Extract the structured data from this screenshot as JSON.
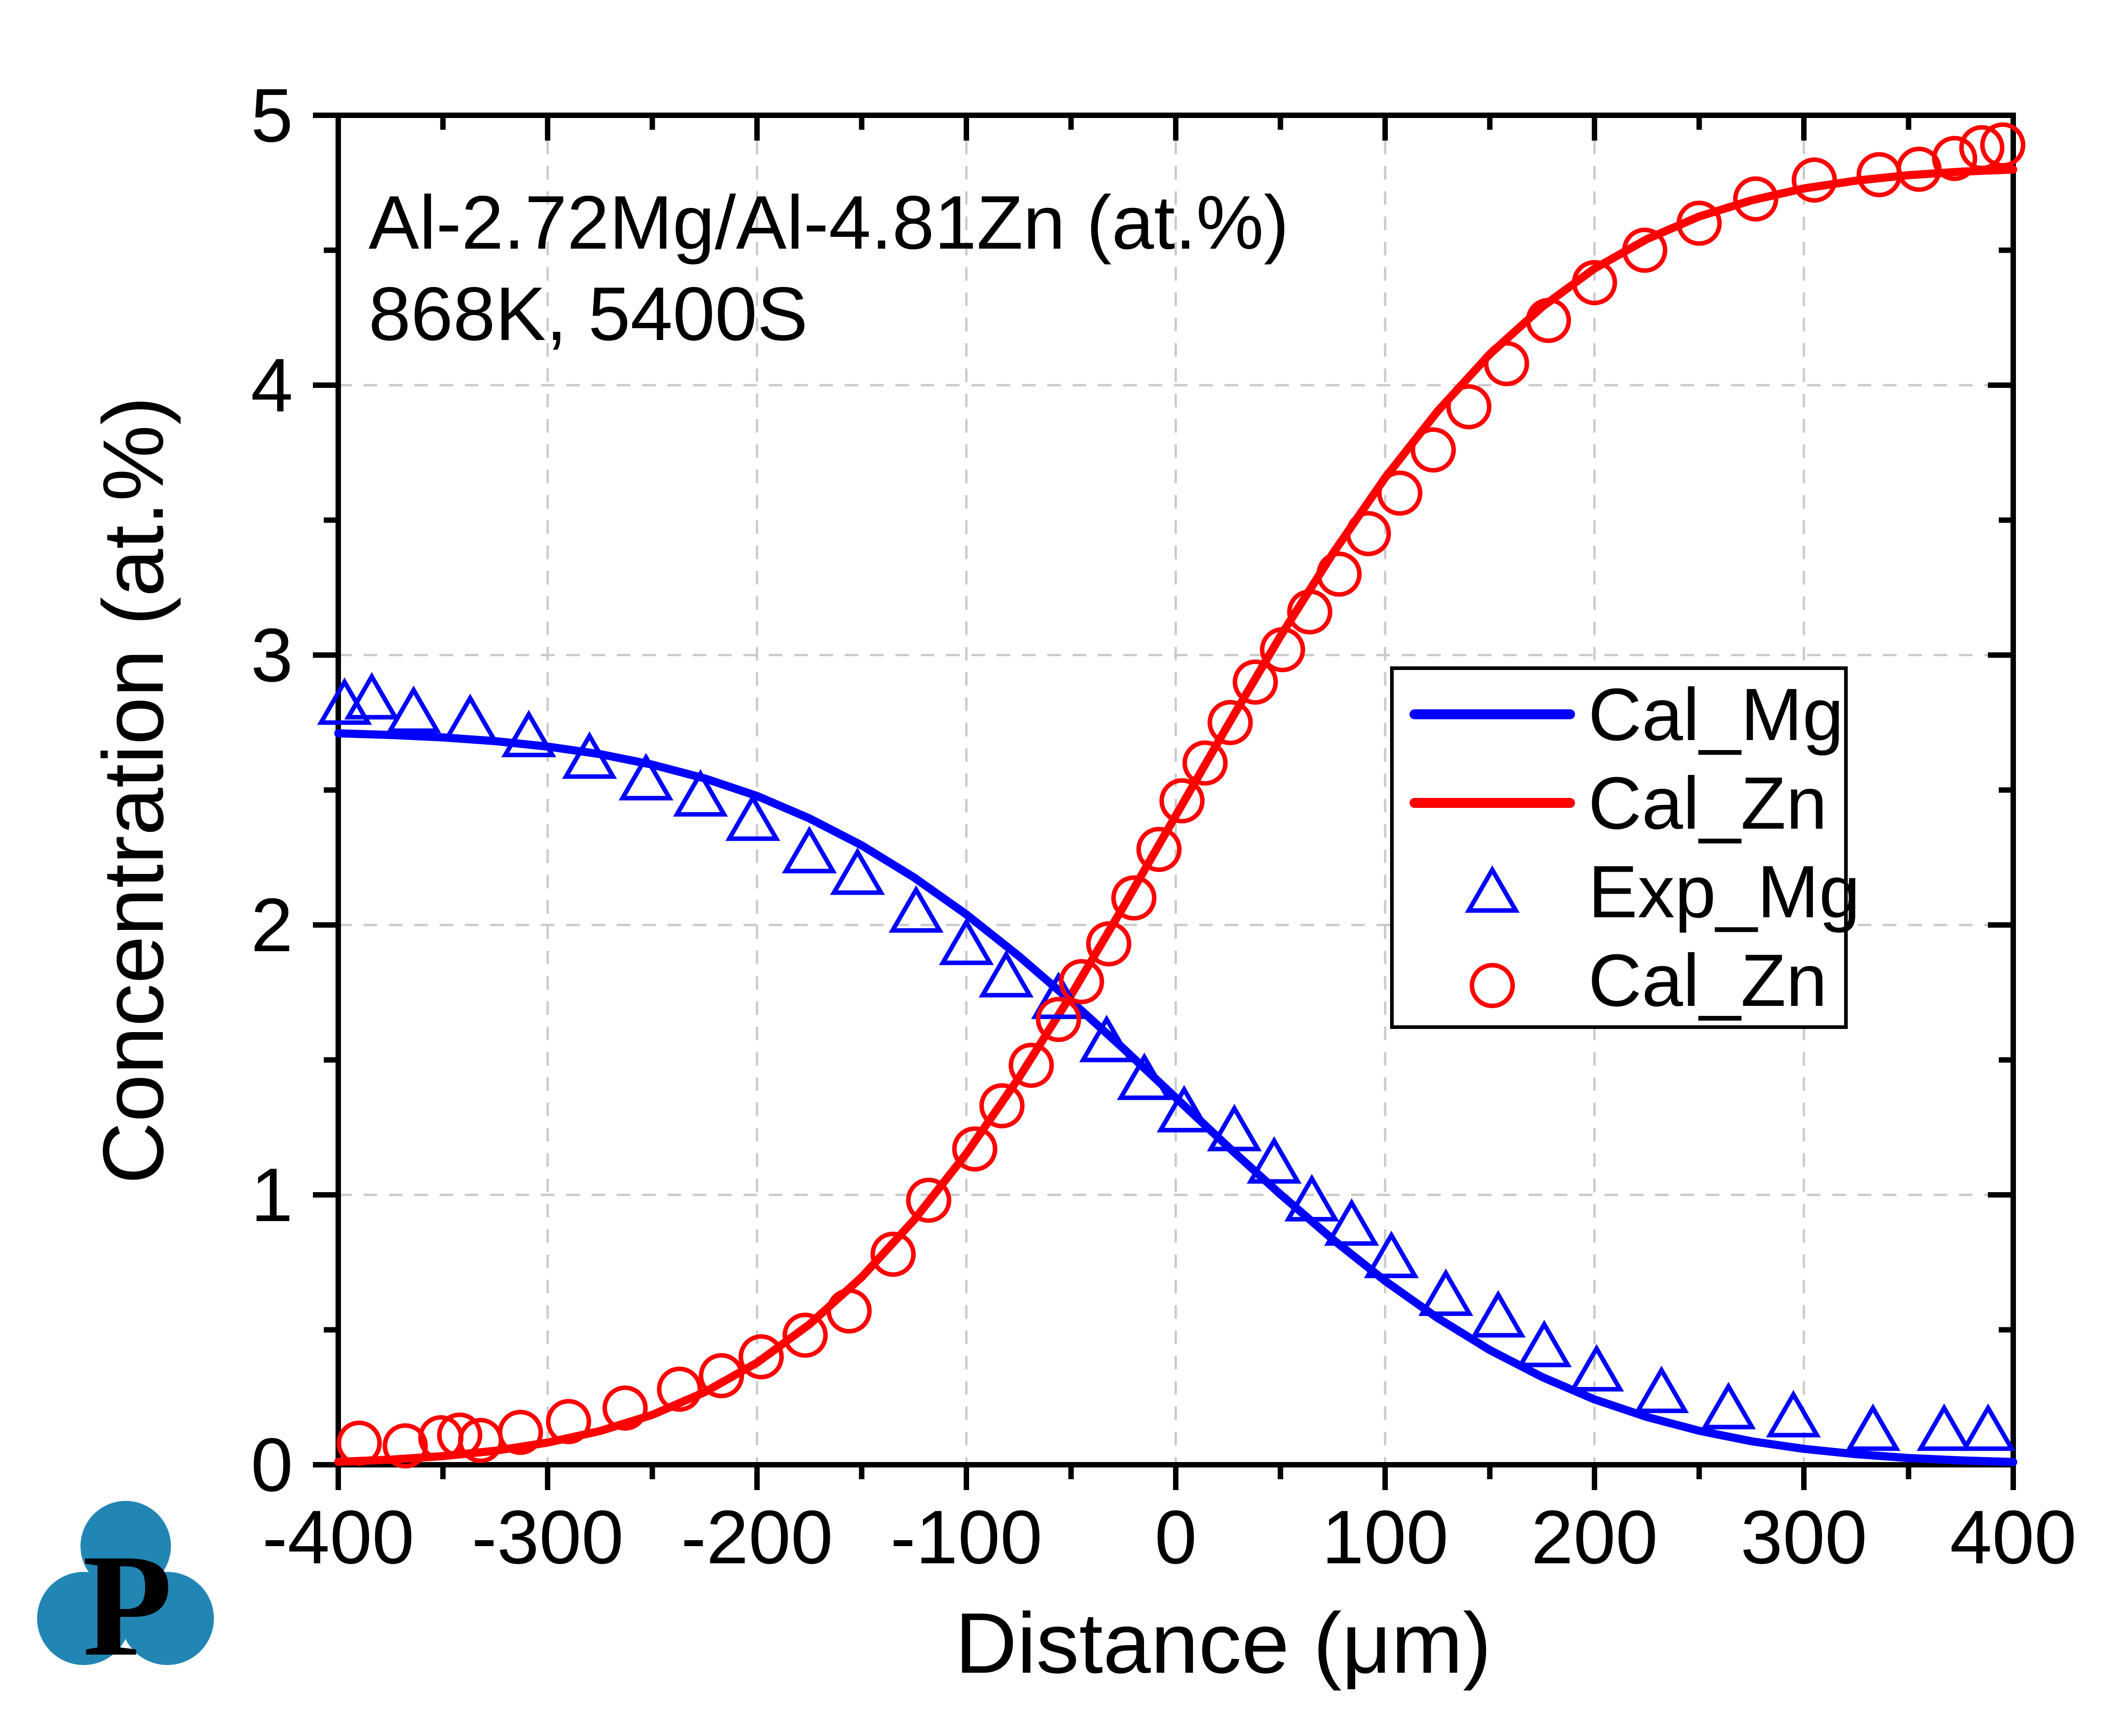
{
  "page": {
    "background": "#ffffff"
  },
  "chart_data": {
    "type": "line",
    "annotation": [
      "Al-2.72Mg/Al-4.81Zn (at.%)",
      "868K, 5400S"
    ],
    "xlabel": "Distance (μm)",
    "ylabel": "Concentration (at.%)",
    "xlim": [
      -400,
      400
    ],
    "ylim": [
      0,
      5
    ],
    "x_major_ticks": [
      -400,
      -300,
      -200,
      -100,
      0,
      100,
      200,
      300,
      400
    ],
    "x_minor_ticks": [
      -350,
      -250,
      -150,
      -50,
      50,
      150,
      250,
      350
    ],
    "y_major_ticks": [
      0,
      1,
      2,
      3,
      4,
      5
    ],
    "y_minor_ticks": [
      0.5,
      1.5,
      2.5,
      3.5,
      4.5
    ],
    "grid": {
      "on": true,
      "x": [
        -300,
        -200,
        -100,
        0,
        100,
        200,
        300
      ],
      "y": [
        1,
        2,
        3,
        4
      ],
      "color": "#c9c9c9"
    },
    "axis_color": "#000000",
    "legend": {
      "position": "right-middle",
      "entries": [
        {
          "label": "Cal_Mg",
          "type": "line",
          "marker": "none",
          "color": "#0000ff"
        },
        {
          "label": "Cal_Zn",
          "type": "line",
          "marker": "none",
          "color": "#ff0000"
        },
        {
          "label": "Exp_Mg",
          "type": "marker",
          "marker": "triangle",
          "color": "#0000ff"
        },
        {
          "label": "Cal_Zn",
          "type": "marker",
          "marker": "circle",
          "color": "#ff0000"
        }
      ]
    },
    "series": [
      {
        "name": "Cal_Mg",
        "type": "line",
        "color": "#0000ff",
        "x": [
          -400,
          -375,
          -350,
          -325,
          -300,
          -275,
          -250,
          -225,
          -200,
          -175,
          -150,
          -125,
          -100,
          -75,
          -50,
          -25,
          0,
          25,
          50,
          75,
          100,
          125,
          150,
          175,
          200,
          225,
          250,
          275,
          300,
          325,
          350,
          375,
          400
        ],
        "y": [
          2.71,
          2.704,
          2.695,
          2.681,
          2.661,
          2.633,
          2.594,
          2.543,
          2.478,
          2.395,
          2.295,
          2.176,
          2.039,
          1.885,
          1.718,
          1.542,
          1.36,
          1.178,
          1.002,
          0.835,
          0.681,
          0.544,
          0.425,
          0.325,
          0.242,
          0.177,
          0.126,
          0.087,
          0.059,
          0.039,
          0.025,
          0.016,
          0.01
        ]
      },
      {
        "name": "Cal_Zn",
        "type": "line",
        "color": "#ff0000",
        "x": [
          -400,
          -375,
          -350,
          -325,
          -300,
          -275,
          -250,
          -225,
          -200,
          -175,
          -150,
          -125,
          -100,
          -75,
          -50,
          -25,
          0,
          25,
          50,
          75,
          100,
          125,
          150,
          175,
          200,
          225,
          250,
          275,
          300,
          325,
          350,
          375,
          400
        ],
        "y": [
          0.011,
          0.019,
          0.032,
          0.052,
          0.082,
          0.125,
          0.185,
          0.269,
          0.378,
          0.52,
          0.695,
          0.907,
          1.153,
          1.433,
          1.74,
          2.068,
          2.405,
          2.742,
          3.07,
          3.376,
          3.657,
          3.903,
          4.115,
          4.29,
          4.432,
          4.541,
          4.625,
          4.685,
          4.729,
          4.758,
          4.778,
          4.791,
          4.799
        ]
      },
      {
        "name": "Exp_Mg",
        "type": "scatter",
        "marker": "triangle",
        "color": "#0000ff",
        "x": [
          -397,
          -384,
          -364,
          -337,
          -309,
          -280,
          -253,
          -227,
          -202,
          -175,
          -152,
          -124,
          -100,
          -81,
          -56,
          -33,
          -15,
          4,
          28,
          47,
          65,
          84,
          103,
          129,
          154,
          176,
          201,
          232,
          264,
          295,
          333,
          367,
          388
        ],
        "y": [
          2.8,
          2.82,
          2.77,
          2.74,
          2.68,
          2.6,
          2.52,
          2.46,
          2.37,
          2.25,
          2.17,
          2.03,
          1.91,
          1.79,
          1.71,
          1.55,
          1.41,
          1.29,
          1.22,
          1.1,
          0.96,
          0.87,
          0.75,
          0.61,
          0.53,
          0.42,
          0.33,
          0.25,
          0.19,
          0.16,
          0.11,
          0.11,
          0.11
        ]
      },
      {
        "name": "Cal_Zn",
        "type": "scatter",
        "marker": "circle",
        "color": "#ff0000",
        "x": [
          -390,
          -368,
          -351,
          -342,
          -332,
          -313,
          -290,
          -263,
          -237,
          -217,
          -198,
          -177,
          -156,
          -135,
          -118,
          -96,
          -83,
          -69,
          -56,
          -45,
          -32,
          -20,
          -8,
          3,
          14,
          26,
          38,
          51,
          64,
          78,
          92,
          107,
          123,
          140,
          158,
          178,
          200,
          224,
          250,
          277,
          305,
          336,
          355,
          372,
          385,
          395
        ],
        "y": [
          0.08,
          0.07,
          0.1,
          0.11,
          0.09,
          0.12,
          0.16,
          0.21,
          0.28,
          0.33,
          0.4,
          0.48,
          0.57,
          0.78,
          0.98,
          1.17,
          1.33,
          1.48,
          1.65,
          1.79,
          1.93,
          2.1,
          2.28,
          2.46,
          2.6,
          2.75,
          2.9,
          3.02,
          3.16,
          3.3,
          3.45,
          3.6,
          3.76,
          3.92,
          4.08,
          4.24,
          4.38,
          4.5,
          4.6,
          4.69,
          4.76,
          4.78,
          4.8,
          4.84,
          4.88,
          4.89
        ]
      }
    ]
  },
  "logo": {
    "letter": "P",
    "color": "#2286b5"
  }
}
